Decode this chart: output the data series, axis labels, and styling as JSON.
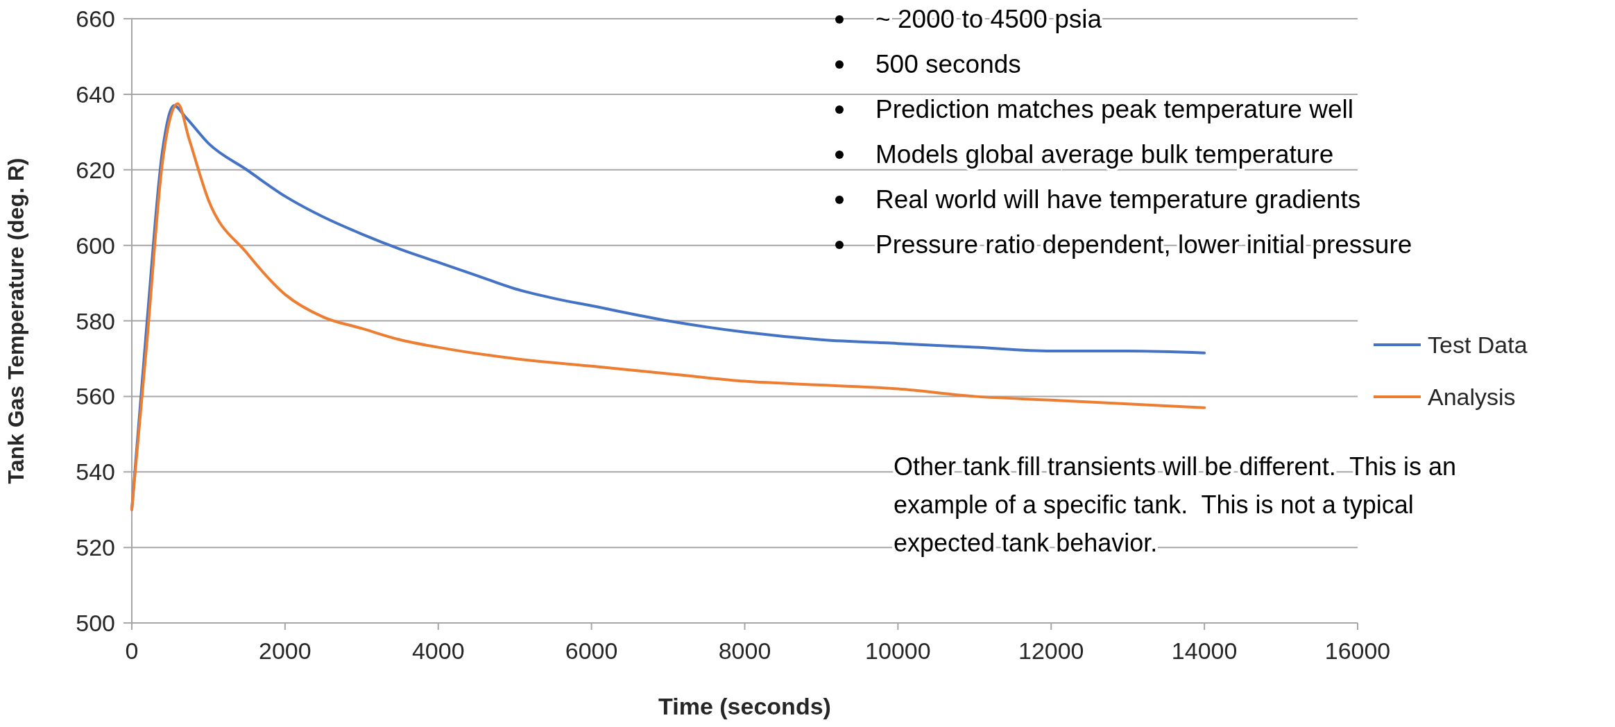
{
  "chart_data": {
    "type": "line",
    "xlabel": "Time (seconds)",
    "ylabel": "Tank Gas Temperature (deg. R)",
    "xlim": [
      0,
      16000
    ],
    "xticks": [
      0,
      2000,
      4000,
      6000,
      8000,
      10000,
      12000,
      14000,
      16000
    ],
    "ylim": [
      500,
      660
    ],
    "yticks": [
      500,
      520,
      540,
      560,
      580,
      600,
      620,
      640,
      660
    ],
    "grid": "y",
    "legend": "right",
    "line_style": "solid",
    "marker": "none",
    "series": [
      {
        "name": "Test Data",
        "color": "#4472c4",
        "x": [
          0,
          200,
          400,
          550,
          700,
          1000,
          1500,
          2000,
          2500,
          3000,
          3500,
          4000,
          4500,
          5000,
          5500,
          6000,
          7000,
          8000,
          9000,
          10000,
          11000,
          12000,
          13000,
          14000
        ],
        "values": [
          530,
          580,
          625,
          637,
          634,
          627,
          620,
          613,
          607.5,
          603,
          599,
          595.5,
          592,
          588.5,
          586,
          584,
          580,
          577,
          575,
          574,
          573,
          572,
          572,
          571.5
        ]
      },
      {
        "name": "Analysis",
        "color": "#ed7d31",
        "x": [
          0,
          200,
          400,
          600,
          750,
          1000,
          1500,
          2000,
          2500,
          3000,
          3500,
          4000,
          5000,
          6000,
          7000,
          8000,
          9000,
          10000,
          11000,
          12000,
          13000,
          14000
        ],
        "values": [
          530,
          575,
          622,
          637.5,
          628,
          612,
          598,
          587,
          581,
          578,
          575,
          573,
          570,
          568,
          566,
          564,
          563,
          562,
          560,
          559,
          558,
          557
        ]
      }
    ],
    "annotations": [
      "~ 2000 to 4500 psia",
      "500 seconds",
      "Prediction matches peak temperature well",
      "Models global average bulk temperature",
      "Real world will have temperature gradients",
      "Pressure ratio dependent, lower initial pressure",
      "Other tank fill transients will be different.  This is an example of a specific tank.  This is not a typical expected tank behavior."
    ]
  }
}
